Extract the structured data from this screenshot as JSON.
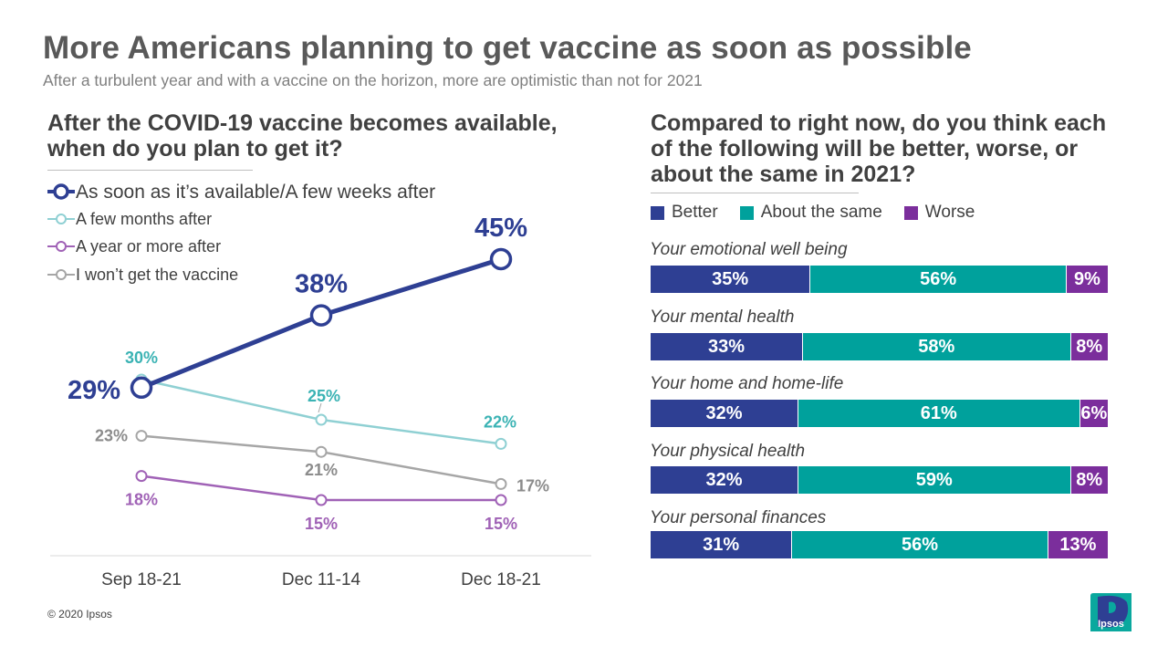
{
  "title": "More Americans planning to get vaccine as soon as possible",
  "subtitle": "After a turbulent  year and with a vaccine on the horizon, more are optimistic than not for 2021",
  "copyright": "© 2020 Ipsos",
  "logo_text": "Ipsos",
  "colors": {
    "navy": "#2e3f93",
    "light_teal": "#8fd0d3",
    "purple": "#a062b6",
    "gray": "#a6a6a6",
    "teal": "#00a19c",
    "dark_purple": "#7b2e9c",
    "ipsos_teal": "#0aa89e"
  },
  "chart_data": [
    {
      "type": "line",
      "title": "After the COVID-19 vaccine becomes available, when do you plan to get it?",
      "x": [
        "Sep 18-21",
        "Dec 11-14",
        "Dec 18-21"
      ],
      "ylim": [
        0,
        50
      ],
      "legend_position": "top-left",
      "grid": false,
      "series": [
        {
          "name": "As soon as it’s available/A few weeks after",
          "values": [
            29,
            38,
            45
          ],
          "labels": [
            "29%",
            "38%",
            "45%"
          ],
          "color": "#2e3f93"
        },
        {
          "name": "A few months after",
          "values": [
            30,
            25,
            22
          ],
          "labels": [
            "30%",
            "25%",
            "22%"
          ],
          "color": "#8fd0d3"
        },
        {
          "name": "A year or more after",
          "values": [
            18,
            15,
            15
          ],
          "labels": [
            "18%",
            "15%",
            "15%"
          ],
          "color": "#a062b6"
        },
        {
          "name": "I won’t get the vaccine",
          "values": [
            23,
            21,
            17
          ],
          "labels": [
            "23%",
            "21%",
            "17%"
          ],
          "color": "#a6a6a6"
        }
      ]
    },
    {
      "type": "bar",
      "stacked": true,
      "orientation": "horizontal",
      "title": "Compared to right now, do you think each of the following will be better, worse, or about the same in 2021?",
      "legend_position": "top",
      "categories": [
        "Your emotional well being",
        "Your mental health",
        "Your home and home-life",
        "Your physical health",
        "Your personal finances"
      ],
      "series": [
        {
          "name": "Better",
          "values": [
            35,
            33,
            32,
            32,
            31
          ],
          "labels": [
            "35%",
            "33%",
            "32%",
            "32%",
            "31%"
          ],
          "color": "#2e3f93"
        },
        {
          "name": "About  the same",
          "values": [
            56,
            58,
            61,
            59,
            56
          ],
          "labels": [
            "56%",
            "58%",
            "61%",
            "59%",
            "56%"
          ],
          "color": "#00a19c"
        },
        {
          "name": "Worse",
          "values": [
            9,
            8,
            6,
            8,
            13
          ],
          "labels": [
            "9%",
            "8%",
            "6%",
            "8%",
            "13%"
          ],
          "color": "#7b2e9c"
        }
      ]
    }
  ]
}
